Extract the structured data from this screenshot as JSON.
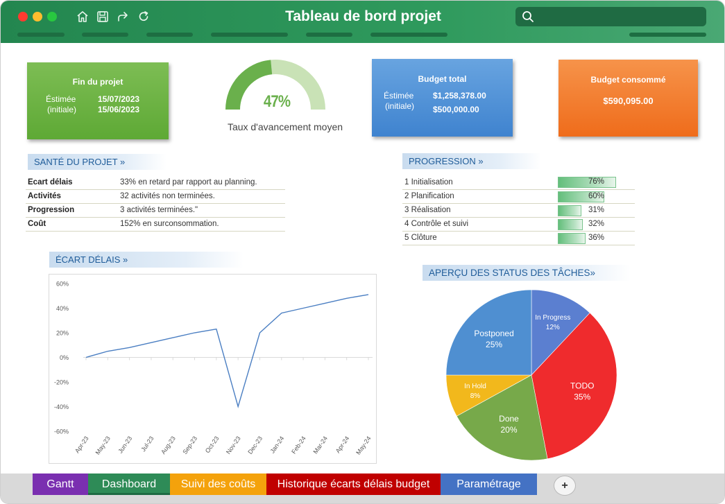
{
  "window": {
    "title": "Tableau de bord projet",
    "search_placeholder": ""
  },
  "toolbar": {
    "icons": [
      "home-icon",
      "save-icon",
      "redo-icon",
      "refresh-icon"
    ]
  },
  "kpi": {
    "fin_projet": {
      "title": "Fin du projet",
      "estimated_label": "Éstimée",
      "estimated_value": "15/07/2023",
      "initial_label": "(initiale)",
      "initial_value": "15/06/2023"
    },
    "gauge": {
      "percent_text": "47%",
      "fraction": 0.47,
      "label": "Taux d'avancement moyen"
    },
    "budget_total": {
      "title": "Budget total",
      "estimated_label": "Éstimée",
      "estimated_value": "$1,258,378.00",
      "initial_label": "(initiale)",
      "initial_value": "$500,000.00"
    },
    "budget_consomme": {
      "title": "Budget consommé",
      "value": "$590,095.00"
    }
  },
  "sante": {
    "header": "SANTÉ DU PROJET »",
    "rows": [
      {
        "key": "Ecart délais",
        "value": "33% en retard par rapport au planning."
      },
      {
        "key": "Activités",
        "value": "32 activités non terminées."
      },
      {
        "key": "Progression",
        "value": "3 activités terminées.\""
      },
      {
        "key": "Coût",
        "value": "152% en surconsommation."
      }
    ]
  },
  "progression": {
    "header": "PROGRESSION »",
    "rows": [
      {
        "num": "1",
        "name": "Initialisation",
        "value": "76%",
        "fraction": 0.76
      },
      {
        "num": "2",
        "name": "Planification",
        "value": "60%",
        "fraction": 0.6
      },
      {
        "num": "3",
        "name": "Réalisation",
        "value": "31%",
        "fraction": 0.31
      },
      {
        "num": "4",
        "name": "Contrôle et suivi",
        "value": "32%",
        "fraction": 0.32
      },
      {
        "num": "5",
        "name": "Clôture",
        "value": "36%",
        "fraction": 0.36
      }
    ]
  },
  "ecart_header": "ÉCART DÉLAIS »",
  "pie_header": "APERÇU DES STATUS DES TÂCHES»",
  "chart_data": [
    {
      "type": "line",
      "title": "",
      "xlabel": "",
      "ylabel": "",
      "x": [
        "Apr-23",
        "May-23",
        "Jun-23",
        "Jul-23",
        "Aug-23",
        "Sep-23",
        "Oct-23",
        "Nov-23",
        "Dec-23",
        "Jan-24",
        "Feb-24",
        "Mar-24",
        "Apr-24",
        "May-24"
      ],
      "series": [
        {
          "values": [
            0,
            5,
            8,
            12,
            16,
            20,
            23,
            -40,
            20,
            36,
            40,
            44,
            48,
            51
          ]
        }
      ],
      "y_ticks": [
        "60%",
        "40%",
        "20%",
        "0%",
        "-20%",
        "-40%",
        "-60%"
      ],
      "ylim": [
        -60,
        60
      ],
      "grid": false,
      "color": "#4a7ec2"
    },
    {
      "type": "pie",
      "title": "",
      "slices": [
        {
          "label": "In Progress",
          "value": 12,
          "pct": "12%",
          "color": "#5b7fd0"
        },
        {
          "label": "TODO",
          "value": 35,
          "pct": "35%",
          "color": "#ef2b2d"
        },
        {
          "label": "Done",
          "value": 20,
          "pct": "20%",
          "color": "#77a94a"
        },
        {
          "label": "In Hold",
          "value": 8,
          "pct": "8%",
          "color": "#f2b81c"
        },
        {
          "label": "Postponed",
          "value": 25,
          "pct": "25%",
          "color": "#4f8fd1"
        }
      ]
    }
  ],
  "tabs": [
    {
      "label": "Gantt",
      "color": "#7a2fb0"
    },
    {
      "label": "Dashboard",
      "color": "#2e8b57"
    },
    {
      "label": "Suivi des coûts",
      "color": "#f4a20c"
    },
    {
      "label": "Historique écarts délais budget",
      "color": "#c00000"
    },
    {
      "label": "Paramétrage",
      "color": "#4472c4"
    }
  ],
  "add_tab_label": "+"
}
